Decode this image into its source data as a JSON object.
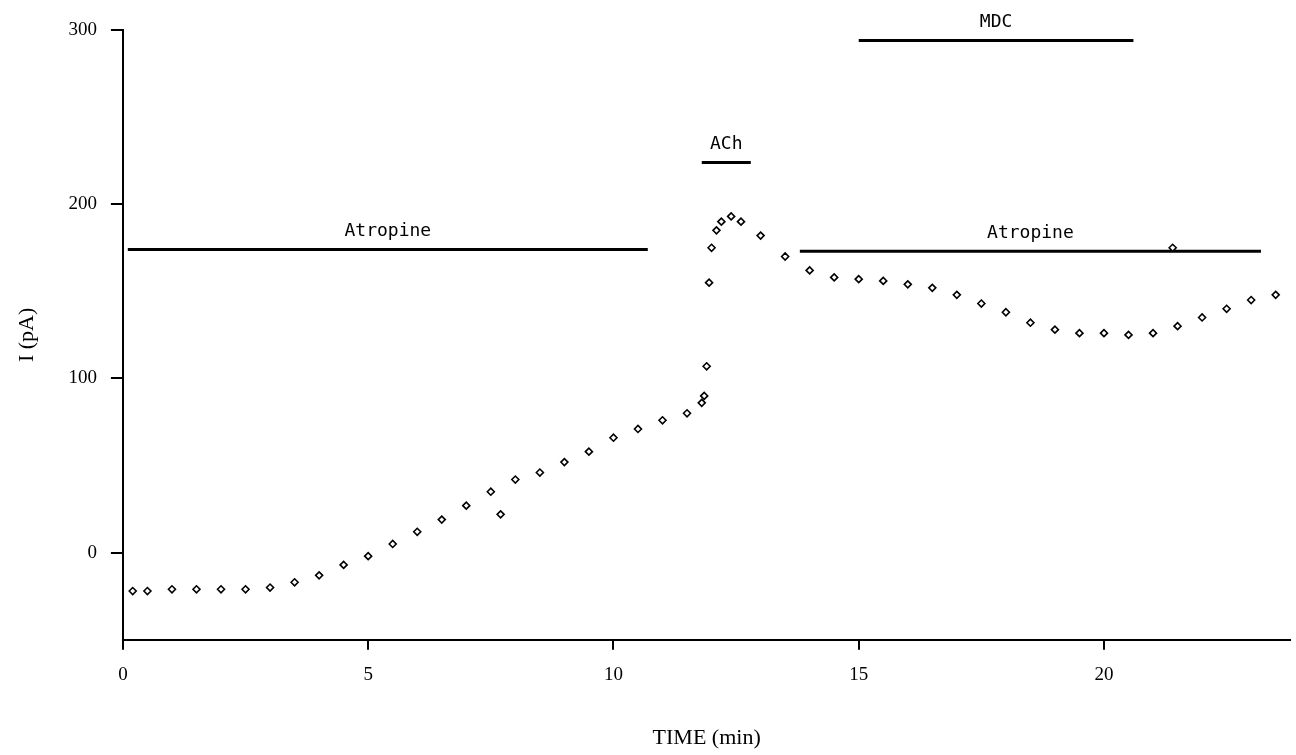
{
  "chart_data": {
    "type": "scatter",
    "xlabel": "TIME (min)",
    "ylabel": "I (pA)",
    "xlim": [
      0,
      23.8
    ],
    "ylim": [
      -50,
      300
    ],
    "xticks": [
      0,
      5,
      10,
      15,
      20
    ],
    "yticks": [
      0,
      100,
      200,
      300
    ],
    "grid": false,
    "legend": false,
    "marker": "diamond",
    "series": [
      {
        "color": "#000000",
        "x": [
          0.2,
          0.5,
          1,
          1.5,
          2,
          2.5,
          3,
          3.5,
          4,
          4.5,
          5,
          5.5,
          6,
          6.5,
          7,
          7.5,
          7.7,
          8,
          8.5,
          9,
          9.5,
          10,
          10.5,
          11,
          11.5,
          11.8,
          11.85,
          11.9,
          11.95,
          12.0,
          12.1,
          12.2,
          12.4,
          12.6,
          13,
          13.5,
          14,
          14.5,
          15,
          15.5,
          16,
          16.5,
          17,
          17.5,
          18,
          18.5,
          19,
          19.5,
          20,
          20.5,
          21,
          21.4,
          21.5,
          22,
          22.5,
          23,
          23.5
        ],
        "values": [
          -22,
          -22,
          -21,
          -21,
          -21,
          -21,
          -20,
          -17,
          -13,
          -7,
          -2,
          5,
          12,
          19,
          27,
          35,
          22,
          42,
          46,
          52,
          58,
          66,
          71,
          76,
          80,
          86,
          90,
          107,
          155,
          175,
          185,
          190,
          193,
          190,
          182,
          170,
          162,
          158,
          157,
          156,
          154,
          152,
          148,
          143,
          138,
          132,
          128,
          126,
          126,
          125,
          126,
          175,
          130,
          135,
          140,
          145,
          148
        ]
      },
      {
        "name": "Atropine",
        "type": "line",
        "marker": "none",
        "color": "#000000",
        "x": [
          0.1,
          10.7
        ],
        "values": [
          174,
          174
        ]
      },
      {
        "name": "ACh",
        "type": "line",
        "marker": "none",
        "color": "#000000",
        "x": [
          11.8,
          12.8
        ],
        "values": [
          224,
          224
        ]
      },
      {
        "name": "MDC",
        "type": "line",
        "marker": "none",
        "color": "#000000",
        "x": [
          15,
          20.6
        ],
        "values": [
          294,
          294
        ]
      },
      {
        "name": "Atropine",
        "type": "line",
        "marker": "none",
        "color": "#000000",
        "x": [
          13.8,
          23.2
        ],
        "values": [
          173,
          173
        ]
      }
    ]
  }
}
